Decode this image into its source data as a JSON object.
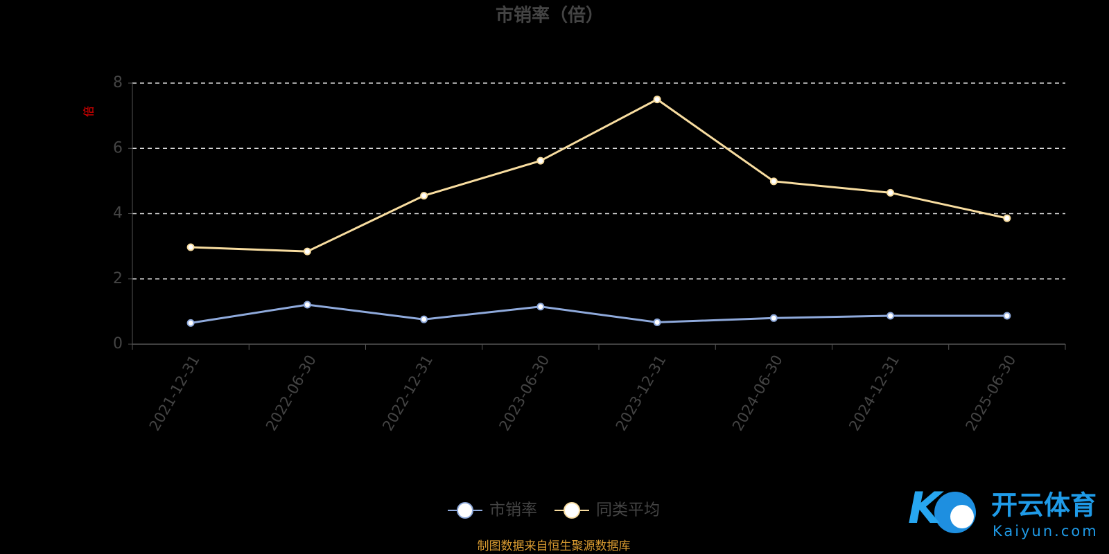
{
  "chart_data": {
    "type": "line",
    "title": "市销率（倍）",
    "y_label": "倍",
    "categories": [
      "2021-12-31",
      "2022-06-30",
      "2022-12-31",
      "2023-06-30",
      "2023-12-31",
      "2024-06-30",
      "2024-12-31",
      "2025-06-30"
    ],
    "series": [
      {
        "name": "市销率",
        "color": "#8faadc",
        "values": [
          0.65,
          1.21,
          0.76,
          1.15,
          0.67,
          0.8,
          0.87,
          0.87
        ]
      },
      {
        "name": "同类平均",
        "color": "#f8dda0",
        "values": [
          2.97,
          2.84,
          4.55,
          5.62,
          7.5,
          4.99,
          4.64,
          3.86
        ]
      }
    ],
    "ylim": [
      0,
      8
    ],
    "yticks": [
      0,
      2,
      4,
      6,
      8
    ],
    "grid": true,
    "source": "制图数据来自恒生聚源数据库"
  },
  "watermark": {
    "name": "开云体育",
    "site": "Kaiyun.com"
  }
}
